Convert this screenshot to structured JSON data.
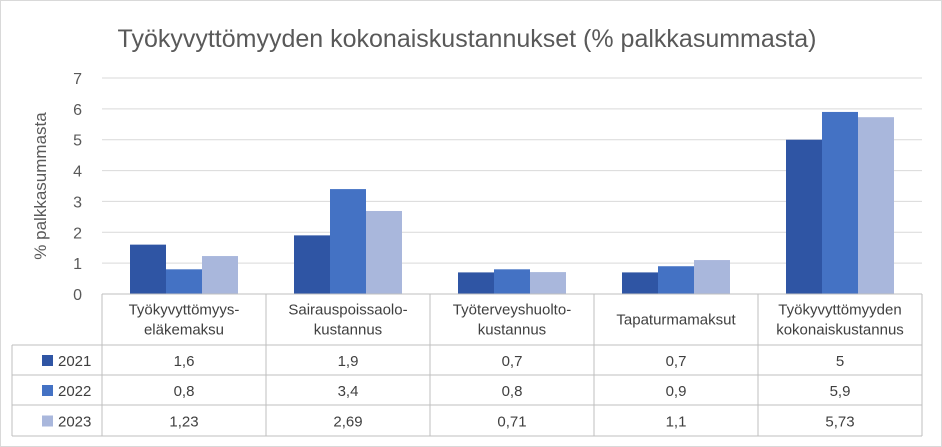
{
  "chart_data": {
    "type": "bar",
    "title": "Työkyvyttömyyden kokonaiskustannukset (% palkkasummasta)",
    "ylabel": "% palkkasummasta",
    "xlabel": "",
    "ylim": [
      0,
      7
    ],
    "yticks": [
      "0",
      "1",
      "2",
      "3",
      "4",
      "5",
      "6",
      "7"
    ],
    "grid": true,
    "legend": "data-table",
    "categories": [
      [
        "Työkyvyttömyys-",
        "eläkemaksu"
      ],
      [
        "Sairauspoissaolo-",
        "kustannus"
      ],
      [
        "Työterveyshuolto-",
        "kustannus"
      ],
      [
        "Tapaturmamaksut"
      ],
      [
        "Työkyvyttömyyden",
        "kokonaiskustannus"
      ]
    ],
    "series": [
      {
        "name": "2021",
        "color": "#2f55a4",
        "values": [
          1.6,
          1.9,
          0.7,
          0.7,
          5
        ],
        "labels": [
          "1,6",
          "1,9",
          "0,7",
          "0,7",
          "5"
        ]
      },
      {
        "name": "2022",
        "color": "#4472c4",
        "values": [
          0.8,
          3.4,
          0.8,
          0.9,
          5.9
        ],
        "labels": [
          "0,8",
          "3,4",
          "0,8",
          "0,9",
          "5,9"
        ]
      },
      {
        "name": "2023",
        "color": "#a9b7dc",
        "values": [
          1.23,
          2.69,
          0.71,
          1.1,
          5.73
        ],
        "labels": [
          "1,23",
          "2,69",
          "0,71",
          "1,1",
          "5,73"
        ]
      }
    ]
  },
  "colors": {
    "grid": "#d9d9d9",
    "text": "#595959",
    "table_border": "#bfbfbf"
  }
}
